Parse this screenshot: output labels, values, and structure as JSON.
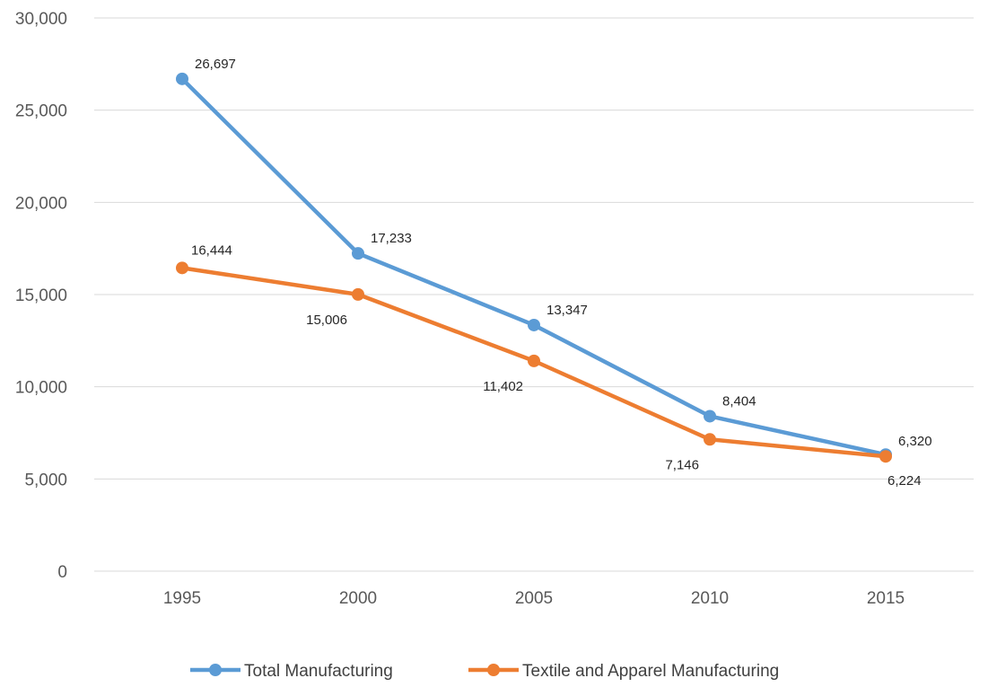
{
  "chart_data": {
    "type": "line",
    "categories": [
      "1995",
      "2000",
      "2005",
      "2010",
      "2015"
    ],
    "series": [
      {
        "name": "Total Manufacturing",
        "color": "#5b9bd5",
        "values": [
          26697,
          17233,
          13347,
          8404,
          6320
        ],
        "labels": [
          "26,697",
          "17,233",
          "13,347",
          "8,404",
          "6,320"
        ]
      },
      {
        "name": "Textile and Apparel Manufacturing",
        "color": "#ed7d31",
        "values": [
          16444,
          15006,
          11402,
          7146,
          6224
        ],
        "labels": [
          "16,444",
          "15,006",
          "11,402",
          "7,146",
          "6,224"
        ]
      }
    ],
    "ylim": [
      0,
      30000
    ],
    "yticks": [
      0,
      5000,
      10000,
      15000,
      20000,
      25000,
      30000
    ],
    "ytick_labels": [
      "0",
      "5,000",
      "10,000",
      "15,000",
      "20,000",
      "25,000",
      "30,000"
    ],
    "title": "",
    "xlabel": "",
    "ylabel": "",
    "grid": true,
    "legend_position": "bottom"
  }
}
